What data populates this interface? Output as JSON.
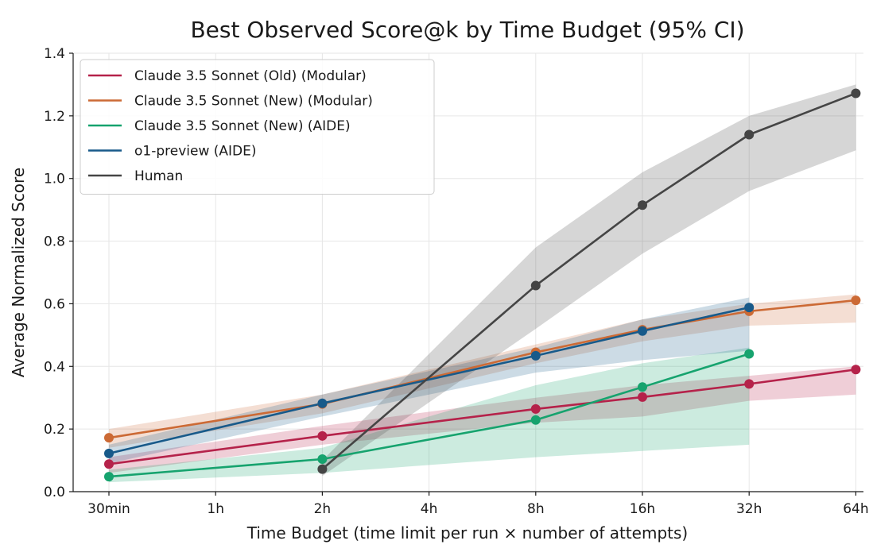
{
  "chart_data": {
    "type": "line",
    "title": "Best Observed Score@k by Time Budget (95% CI)",
    "xlabel": "Time Budget (time limit per run × number of attempts)",
    "ylabel": "Average Normalized Score",
    "categories": [
      "30min",
      "1h",
      "2h",
      "4h",
      "8h",
      "16h",
      "32h",
      "64h"
    ],
    "ylim": [
      0.0,
      1.4
    ],
    "yticks": [
      "0.0",
      "0.2",
      "0.4",
      "0.6",
      "0.8",
      "1.0",
      "1.2",
      "1.4"
    ],
    "grid": true,
    "legend_position": "top-left",
    "series": [
      {
        "name": "Claude 3.5 Sonnet (Old) (Modular)",
        "color": "#b5224a",
        "x": [
          "30min",
          "2h",
          "8h",
          "16h",
          "32h",
          "64h"
        ],
        "values": [
          0.088,
          0.178,
          0.264,
          0.302,
          0.344,
          0.39
        ],
        "ci_low": [
          0.06,
          0.15,
          0.22,
          0.24,
          0.29,
          0.31
        ],
        "ci_high": [
          0.11,
          0.21,
          0.3,
          0.34,
          0.37,
          0.4
        ]
      },
      {
        "name": "Claude 3.5 Sonnet (New) (Modular)",
        "color": "#cc6a35",
        "x": [
          "30min",
          "2h",
          "8h",
          "16h",
          "32h",
          "64h"
        ],
        "values": [
          0.172,
          0.28,
          0.445,
          0.517,
          0.576,
          0.611
        ],
        "ci_low": [
          0.14,
          0.25,
          0.41,
          0.48,
          0.53,
          0.54
        ],
        "ci_high": [
          0.2,
          0.31,
          0.47,
          0.55,
          0.6,
          0.63
        ]
      },
      {
        "name": "Claude 3.5 Sonnet (New) (AIDE)",
        "color": "#16a36e",
        "x": [
          "30min",
          "2h",
          "8h",
          "16h",
          "32h"
        ],
        "values": [
          0.048,
          0.104,
          0.229,
          0.334,
          0.44
        ],
        "ci_low": [
          0.03,
          0.06,
          0.11,
          0.13,
          0.15
        ],
        "ci_high": [
          0.07,
          0.14,
          0.34,
          0.41,
          0.46
        ]
      },
      {
        "name": "o1-preview (AIDE)",
        "color": "#185a8a",
        "x": [
          "30min",
          "2h",
          "8h",
          "16h",
          "32h"
        ],
        "values": [
          0.122,
          0.282,
          0.434,
          0.513,
          0.588
        ],
        "ci_low": [
          0.09,
          0.24,
          0.38,
          0.42,
          0.45
        ],
        "ci_high": [
          0.15,
          0.31,
          0.46,
          0.55,
          0.62
        ]
      },
      {
        "name": "Human",
        "color": "#454545",
        "x": [
          "2h",
          "8h",
          "16h",
          "32h",
          "64h"
        ],
        "values": [
          0.072,
          0.658,
          0.915,
          1.14,
          1.272
        ],
        "ci_low": [
          0.05,
          0.52,
          0.76,
          0.96,
          1.09
        ],
        "ci_high": [
          0.1,
          0.78,
          1.02,
          1.2,
          1.3
        ]
      }
    ]
  }
}
